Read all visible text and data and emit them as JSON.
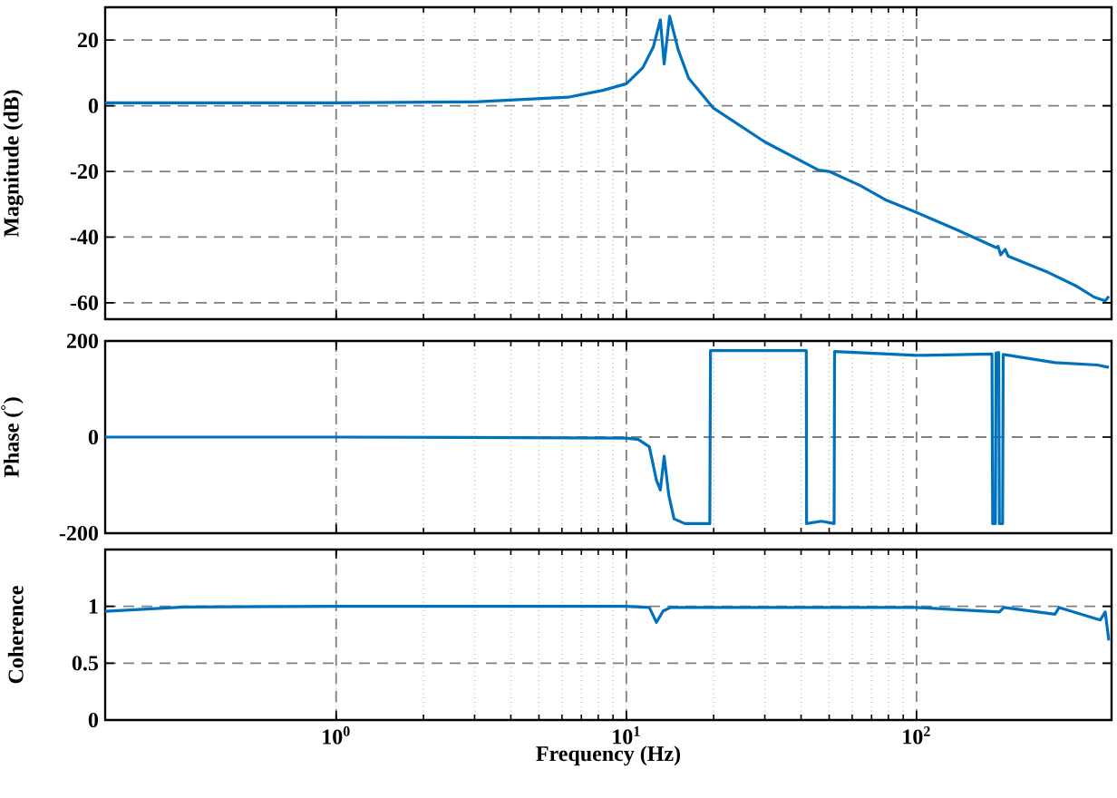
{
  "chart_data": [
    {
      "type": "line",
      "ylabel": "Magnitude (dB)",
      "log": "x",
      "grid": true,
      "tick_labels": "y",
      "color": "#0072bd",
      "x": [
        0.16,
        0.3,
        1,
        3,
        6.3,
        8.3,
        10,
        11.4,
        12.4,
        13.1,
        13.5,
        14.1,
        15.1,
        16.4,
        19.9,
        30,
        46,
        50,
        64,
        78,
        100,
        138,
        188,
        191,
        195,
        202,
        207,
        285,
        357,
        410,
        447,
        460
      ],
      "values": [
        0.9,
        0.9,
        0.9,
        1.2,
        2.6,
        4.7,
        6.7,
        11.6,
        18,
        26.2,
        12.7,
        27.3,
        17,
        8.4,
        -0.6,
        -11,
        -19.6,
        -20,
        -24.3,
        -28.6,
        -32.5,
        -37.8,
        -43.2,
        -42.8,
        -45.4,
        -43.7,
        -45.8,
        -50.8,
        -55,
        -58.3,
        -59.4,
        -58
      ],
      "xlim": [
        0.16,
        470
      ],
      "ylim": [
        -65,
        30
      ],
      "xticks": [
        {
          "value": 1,
          "label": null
        },
        {
          "value": 10,
          "label": null
        },
        {
          "value": 100,
          "label": null
        }
      ],
      "yticks": [
        -60,
        -40,
        -20,
        0,
        20
      ]
    },
    {
      "type": "line",
      "ylabel": "Phase ($^{°}$)",
      "log": "x",
      "grid": true,
      "tick_labels": "y",
      "color": "#0072bd",
      "x": [
        0.16,
        1,
        10,
        11,
        12.0,
        12.7,
        13.1,
        13.5,
        14,
        14.6,
        15.9,
        19.4,
        19.5,
        41.7,
        41.8,
        47,
        52,
        52.2,
        100,
        182,
        183,
        187,
        188,
        192,
        193,
        198,
        199,
        300,
        420,
        460
      ],
      "values": [
        0,
        0,
        -2,
        -5,
        -20,
        -90,
        -110,
        -40,
        -120,
        -170,
        -180,
        -180,
        180,
        180,
        -180,
        -175,
        -180,
        178,
        170,
        173,
        -180,
        -180,
        175,
        176,
        -180,
        -180,
        172,
        155,
        150,
        145
      ],
      "xlim": [
        0.16,
        470
      ],
      "ylim": [
        -200,
        200
      ],
      "xticks": [
        {
          "value": 1,
          "label": null
        },
        {
          "value": 10,
          "label": null
        },
        {
          "value": 100,
          "label": null
        }
      ],
      "yticks": [
        -200,
        0,
        200
      ]
    },
    {
      "type": "line",
      "xlabel": "Frequency (Hz)",
      "ylabel": "Coherence",
      "log": "x",
      "grid": true,
      "color": "#0072bd",
      "x": [
        0.16,
        0.3,
        1,
        10,
        12,
        12.7,
        13.4,
        14.2,
        100,
        193,
        200,
        300,
        310,
        430,
        447,
        460
      ],
      "values": [
        0.956,
        0.995,
        1,
        1,
        0.99,
        0.86,
        0.96,
        0.99,
        0.99,
        0.95,
        0.99,
        0.93,
        0.99,
        0.88,
        0.95,
        0.7
      ],
      "xlim": [
        0.16,
        470
      ],
      "ylim": [
        0,
        1.5
      ],
      "xticks": [
        {
          "value": 1,
          "label": "10$^{0}$"
        },
        {
          "value": 10,
          "label": "10$^{1}$"
        },
        {
          "value": 100,
          "label": "10$^{2}$"
        }
      ],
      "yticks": [
        0,
        0.5,
        1
      ]
    }
  ]
}
